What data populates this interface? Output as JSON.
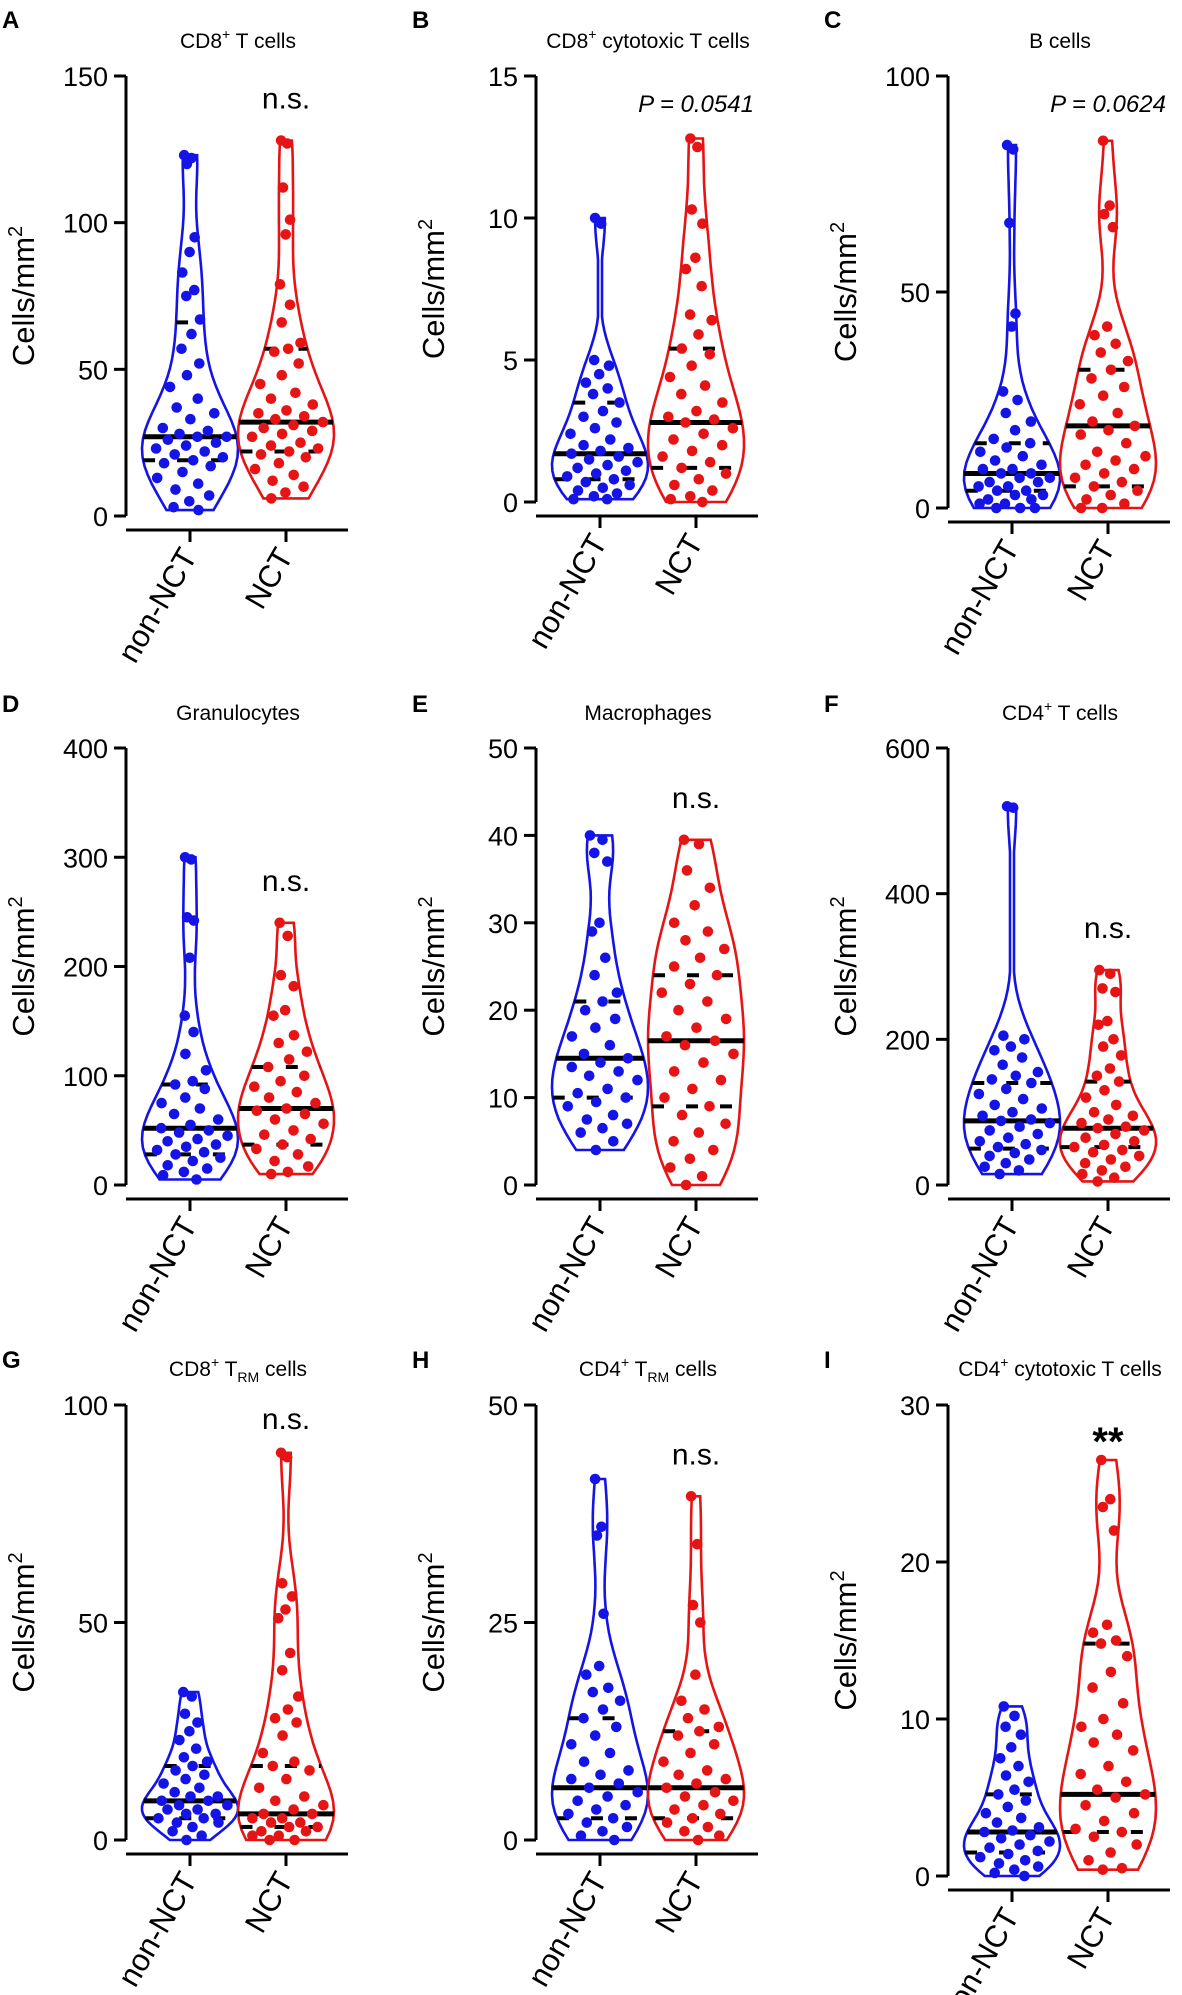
{
  "figure": {
    "xlabel_group1": "non-NCT",
    "xlabel_group2": "NCT",
    "ylabel": "Cells/mm",
    "ylabel_sup": "2",
    "colors": {
      "group1": "#1414e6",
      "group2": "#e61414",
      "quartile": "#000000",
      "text": "#000000"
    }
  },
  "chart_data": [
    {
      "panel": "A",
      "type": "violin",
      "title": {
        "main": "CD8",
        "sup": "+",
        "rest": " T cells"
      },
      "annotation": "n.s.",
      "annotation_style": "normal",
      "ylim": [
        0,
        150
      ],
      "yticks": [
        0,
        50,
        100,
        150
      ],
      "groups": [
        "non-NCT",
        "NCT"
      ],
      "series": [
        {
          "name": "non-NCT",
          "min": 2,
          "max": 123,
          "q1": 19,
          "median": 27,
          "q3": 66,
          "values": [
            123,
            122,
            120,
            95,
            90,
            83,
            77,
            75,
            67,
            62,
            57,
            52,
            48,
            44,
            40,
            37,
            35,
            33,
            30,
            29,
            28,
            27,
            27,
            26,
            25,
            24,
            23,
            22,
            21,
            20,
            19,
            18,
            17,
            15,
            13,
            11,
            9,
            7,
            5,
            3,
            2
          ]
        },
        {
          "name": "NCT",
          "min": 6,
          "max": 128,
          "q1": 22,
          "median": 32,
          "q3": 57,
          "values": [
            128,
            127,
            112,
            101,
            96,
            79,
            72,
            66,
            59,
            57,
            56,
            52,
            48,
            45,
            42,
            40,
            38,
            36,
            35,
            34,
            33,
            32,
            31,
            30,
            29,
            28,
            27,
            25,
            24,
            23,
            22,
            21,
            20,
            18,
            16,
            14,
            12,
            10,
            8,
            6
          ]
        }
      ]
    },
    {
      "panel": "B",
      "type": "violin",
      "title": {
        "main": "CD8",
        "sup": "+",
        "rest": " cytotoxic T cells"
      },
      "annotation": "P = 0.0541",
      "annotation_style": "italic",
      "ylim": [
        0,
        15
      ],
      "yticks": [
        0,
        5,
        10,
        15
      ],
      "groups": [
        "non-NCT",
        "NCT"
      ],
      "series": [
        {
          "name": "non-NCT",
          "min": 0.1,
          "max": 10,
          "q1": 0.8,
          "median": 1.7,
          "q3": 3.5,
          "values": [
            10,
            9.8,
            5,
            4.8,
            4.5,
            4.2,
            4,
            3.8,
            3.5,
            3.2,
            3,
            2.8,
            2.6,
            2.4,
            2.2,
            2,
            1.9,
            1.8,
            1.7,
            1.6,
            1.5,
            1.4,
            1.3,
            1.2,
            1.1,
            1,
            0.9,
            0.8,
            0.7,
            0.6,
            0.5,
            0.4,
            0.3,
            0.2,
            0.1,
            0.1
          ]
        },
        {
          "name": "NCT",
          "min": 0,
          "max": 12.8,
          "q1": 1.2,
          "median": 2.8,
          "q3": 5.4,
          "values": [
            12.8,
            12.5,
            10.3,
            9.8,
            8.6,
            8.2,
            7.6,
            6.6,
            6.4,
            5.9,
            5.4,
            5.2,
            4.8,
            4.4,
            4.1,
            3.8,
            3.5,
            3.2,
            3,
            2.9,
            2.8,
            2.6,
            2.4,
            2.2,
            2,
            1.8,
            1.6,
            1.4,
            1.2,
            1,
            0.8,
            0.6,
            0.4,
            0.2,
            0.1,
            0
          ]
        }
      ]
    },
    {
      "panel": "C",
      "type": "violin",
      "title": {
        "main": "B cells",
        "sup": "",
        "rest": ""
      },
      "annotation": "P = 0.0624",
      "annotation_style": "italic",
      "ylim": [
        0,
        100
      ],
      "yticks": [
        0,
        50,
        100
      ],
      "groups": [
        "non-NCT",
        "NCT"
      ],
      "series": [
        {
          "name": "non-NCT",
          "min": 0,
          "max": 84,
          "q1": 4,
          "median": 8,
          "q3": 15,
          "values": [
            84,
            83,
            66,
            45,
            42,
            27,
            25,
            22,
            20,
            18,
            16,
            15,
            14,
            13,
            12,
            11,
            10,
            9,
            9,
            8,
            8,
            7,
            7,
            6,
            6,
            5,
            5,
            4,
            4,
            3,
            3,
            2,
            2,
            1,
            1,
            0,
            0,
            0
          ]
        },
        {
          "name": "NCT",
          "min": 0,
          "max": 85,
          "q1": 5,
          "median": 19,
          "q3": 32,
          "values": [
            85,
            70,
            68,
            65,
            42,
            40,
            38,
            36,
            34,
            32,
            30,
            28,
            26,
            24,
            22,
            20,
            19,
            18,
            17,
            15,
            13,
            12,
            11,
            10,
            9,
            8,
            7,
            6,
            5,
            4,
            3,
            2,
            1,
            0,
            0
          ]
        }
      ]
    },
    {
      "panel": "D",
      "type": "violin",
      "title": {
        "main": "Granulocytes",
        "sup": "",
        "rest": ""
      },
      "annotation": "n.s.",
      "annotation_style": "normal",
      "ylim": [
        0,
        400
      ],
      "yticks": [
        0,
        100,
        200,
        300,
        400
      ],
      "groups": [
        "non-NCT",
        "NCT"
      ],
      "series": [
        {
          "name": "non-NCT",
          "min": 5,
          "max": 300,
          "q1": 28,
          "median": 52,
          "q3": 92,
          "values": [
            300,
            298,
            245,
            242,
            208,
            155,
            140,
            120,
            105,
            95,
            92,
            88,
            80,
            75,
            70,
            65,
            60,
            55,
            52,
            50,
            48,
            45,
            42,
            40,
            37,
            35,
            32,
            30,
            28,
            25,
            22,
            18,
            15,
            12,
            9,
            5
          ]
        },
        {
          "name": "NCT",
          "min": 10,
          "max": 240,
          "q1": 37,
          "median": 70,
          "q3": 108,
          "values": [
            240,
            228,
            192,
            182,
            160,
            155,
            137,
            130,
            122,
            115,
            108,
            100,
            95,
            90,
            85,
            80,
            75,
            70,
            68,
            65,
            60,
            56,
            50,
            46,
            42,
            37,
            33,
            28,
            22,
            17,
            12,
            10
          ]
        }
      ]
    },
    {
      "panel": "E",
      "type": "violin",
      "title": {
        "main": "Macrophages",
        "sup": "",
        "rest": ""
      },
      "annotation": "n.s.",
      "annotation_style": "normal",
      "ylim": [
        0,
        50
      ],
      "yticks": [
        0,
        10,
        20,
        30,
        40,
        50
      ],
      "groups": [
        "non-NCT",
        "NCT"
      ],
      "series": [
        {
          "name": "non-NCT",
          "min": 4,
          "max": 40,
          "q1": 10,
          "median": 14.5,
          "q3": 21,
          "values": [
            40,
            39.5,
            38,
            37,
            30,
            29,
            26,
            24,
            22,
            21,
            20,
            19,
            18,
            17,
            16,
            15,
            14.5,
            14,
            13.5,
            13,
            12.5,
            12,
            11,
            10.5,
            10,
            9.5,
            9,
            8,
            7.5,
            7,
            6.5,
            6,
            5,
            4
          ]
        },
        {
          "name": "NCT",
          "min": 0,
          "max": 39.5,
          "q1": 9,
          "median": 16.5,
          "q3": 24,
          "values": [
            39.5,
            39,
            36,
            34,
            32,
            30,
            29,
            28,
            27,
            26,
            25,
            24,
            23,
            22,
            21,
            20,
            19,
            18,
            17,
            16.5,
            16,
            15,
            14,
            13,
            12,
            11,
            10,
            9,
            8,
            7,
            6,
            5,
            4,
            3,
            2,
            1,
            0
          ]
        }
      ]
    },
    {
      "panel": "F",
      "type": "violin",
      "title": {
        "main": "CD4",
        "sup": "+",
        "rest": " T cells"
      },
      "annotation": "n.s.",
      "annotation_style": "normal",
      "ylim": [
        0,
        600
      ],
      "yticks": [
        0,
        200,
        400,
        600
      ],
      "groups": [
        "non-NCT",
        "NCT"
      ],
      "series": [
        {
          "name": "non-NCT",
          "min": 15,
          "max": 520,
          "q1": 50,
          "median": 88,
          "q3": 140,
          "values": [
            520,
            518,
            205,
            200,
            190,
            185,
            175,
            165,
            155,
            150,
            145,
            140,
            132,
            125,
            118,
            110,
            105,
            100,
            95,
            90,
            88,
            85,
            80,
            75,
            70,
            65,
            60,
            56,
            52,
            48,
            44,
            40,
            35,
            30,
            25,
            20,
            15
          ]
        },
        {
          "name": "NCT",
          "min": 5,
          "max": 295,
          "q1": 52,
          "median": 78,
          "q3": 142,
          "values": [
            295,
            290,
            270,
            265,
            225,
            220,
            200,
            190,
            178,
            160,
            150,
            142,
            130,
            120,
            110,
            100,
            95,
            90,
            85,
            80,
            78,
            75,
            70,
            65,
            60,
            55,
            52,
            48,
            45,
            40,
            35,
            30,
            25,
            20,
            15,
            10,
            5
          ]
        }
      ]
    },
    {
      "panel": "G",
      "type": "violin",
      "title": {
        "main": "CD8",
        "sup": "+",
        "rest": " T",
        "sub": "RM",
        "rest2": " cells"
      },
      "annotation": "n.s.",
      "annotation_style": "normal",
      "ylim": [
        0,
        100
      ],
      "yticks": [
        0,
        50,
        100
      ],
      "groups": [
        "non-NCT",
        "NCT"
      ],
      "series": [
        {
          "name": "non-NCT",
          "min": 0,
          "max": 34,
          "q1": 5,
          "median": 9,
          "q3": 17,
          "values": [
            34,
            33,
            29,
            27,
            25,
            23,
            21,
            19,
            18,
            17,
            16,
            15,
            14,
            13,
            12,
            11,
            10,
            10,
            9,
            9,
            8,
            8,
            7,
            7,
            6,
            6,
            5,
            5,
            4,
            4,
            3,
            2,
            1,
            0
          ]
        },
        {
          "name": "NCT",
          "min": 0,
          "max": 89,
          "q1": 3,
          "median": 6,
          "q3": 17,
          "values": [
            89,
            88,
            59,
            56,
            53,
            51,
            43,
            39,
            33,
            30,
            28,
            27,
            24,
            20,
            18,
            17,
            16,
            14,
            12,
            10,
            9,
            8,
            7,
            6,
            6,
            5,
            5,
            4,
            4,
            3,
            3,
            2,
            2,
            1,
            1,
            0,
            0
          ]
        }
      ]
    },
    {
      "panel": "H",
      "type": "violin",
      "title": {
        "main": "CD4",
        "sup": "+",
        "rest": " T",
        "sub": "RM",
        "rest2": " cells"
      },
      "annotation": "n.s.",
      "annotation_style": "normal",
      "ylim": [
        0,
        50
      ],
      "yticks": [
        0,
        25,
        50
      ],
      "groups": [
        "non-NCT",
        "NCT"
      ],
      "series": [
        {
          "name": "non-NCT",
          "min": 0,
          "max": 41.5,
          "q1": 2.5,
          "median": 6,
          "q3": 14,
          "values": [
            41.5,
            36,
            35,
            26,
            20,
            19,
            17.5,
            17,
            16,
            15,
            14,
            13,
            12,
            11,
            10,
            9,
            8,
            7.5,
            7,
            6.5,
            6,
            5.5,
            5,
            4.5,
            4,
            3.5,
            3,
            2.5,
            2,
            1.5,
            1,
            0.5,
            0
          ]
        },
        {
          "name": "NCT",
          "min": 0,
          "max": 39.5,
          "q1": 2.5,
          "median": 6,
          "q3": 12.5,
          "values": [
            39.5,
            34,
            27,
            25,
            19,
            16,
            15,
            14,
            13,
            12.5,
            12,
            11,
            10,
            9,
            8,
            7.5,
            7,
            6.5,
            6,
            5.5,
            5,
            4.5,
            4,
            3.5,
            3,
            2.5,
            2,
            1.5,
            1,
            0.5,
            0
          ]
        }
      ]
    },
    {
      "panel": "I",
      "type": "violin",
      "title": {
        "main": "CD4",
        "sup": "+",
        "rest": "  cytotoxic T cells"
      },
      "annotation": "**",
      "annotation_style": "bold",
      "ylim": [
        0,
        30
      ],
      "yticks": [
        0,
        10,
        20,
        30
      ],
      "groups": [
        "non-NCT",
        "NCT"
      ],
      "series": [
        {
          "name": "non-NCT",
          "min": 0,
          "max": 10.8,
          "q1": 1.5,
          "median": 2.8,
          "q3": 5.2,
          "values": [
            10.8,
            10.2,
            9.5,
            9,
            8.2,
            7.5,
            7,
            6.4,
            6,
            5.5,
            5.2,
            4.8,
            4.4,
            4,
            3.7,
            3.4,
            3.1,
            2.9,
            2.8,
            2.6,
            2.4,
            2.2,
            2,
            1.8,
            1.6,
            1.4,
            1.2,
            1,
            0.8,
            0.6,
            0.4,
            0.2,
            0
          ]
        },
        {
          "name": "NCT",
          "min": 0.4,
          "max": 26.5,
          "q1": 2.8,
          "median": 5.2,
          "q3": 14.8,
          "values": [
            26.5,
            24,
            23.5,
            22,
            16,
            15.5,
            15,
            14.8,
            14,
            13,
            12,
            11,
            10,
            9.5,
            9,
            8.5,
            8,
            7,
            6.5,
            6,
            5.5,
            5.2,
            5,
            4.5,
            4,
            3.5,
            3,
            2.8,
            2.5,
            2,
            1.5,
            1,
            0.5,
            0.4
          ]
        }
      ]
    }
  ]
}
